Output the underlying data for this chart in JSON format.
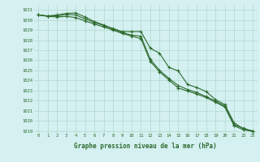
{
  "x": [
    0,
    1,
    2,
    3,
    4,
    5,
    6,
    7,
    8,
    9,
    10,
    11,
    12,
    13,
    14,
    15,
    16,
    17,
    18,
    19,
    20,
    21,
    22,
    23
  ],
  "line1": [
    1030.5,
    1030.4,
    1030.5,
    1030.65,
    1030.7,
    1030.3,
    1029.85,
    1029.5,
    1029.15,
    1028.85,
    1028.85,
    1028.85,
    1027.2,
    1026.7,
    1025.3,
    1024.95,
    1023.6,
    1023.3,
    1022.9,
    1022.1,
    1021.6,
    1019.8,
    1019.2,
    1019.0
  ],
  "line2": [
    1030.5,
    1030.4,
    1030.4,
    1030.55,
    1030.5,
    1030.1,
    1029.75,
    1029.45,
    1029.1,
    1028.75,
    1028.5,
    1028.4,
    1026.1,
    1025.0,
    1024.2,
    1023.5,
    1023.1,
    1022.8,
    1022.4,
    1021.95,
    1021.45,
    1019.6,
    1019.25,
    1018.95
  ],
  "line3": [
    1030.5,
    1030.35,
    1030.3,
    1030.35,
    1030.25,
    1029.9,
    1029.6,
    1029.3,
    1029.0,
    1028.65,
    1028.4,
    1028.15,
    1025.9,
    1024.85,
    1024.05,
    1023.25,
    1022.95,
    1022.65,
    1022.3,
    1021.85,
    1021.35,
    1019.5,
    1019.1,
    1018.95
  ],
  "ylim": [
    1018.8,
    1031.5
  ],
  "yticks": [
    1019,
    1020,
    1021,
    1022,
    1023,
    1024,
    1025,
    1026,
    1027,
    1028,
    1029,
    1030,
    1031
  ],
  "xticks": [
    0,
    1,
    2,
    3,
    4,
    5,
    6,
    7,
    8,
    9,
    10,
    11,
    12,
    13,
    14,
    15,
    16,
    17,
    18,
    19,
    20,
    21,
    22,
    23
  ],
  "xlabel": "Graphe pression niveau de la mer (hPa)",
  "line_color": "#2d6a2d",
  "bg_color": "#d4f0f0",
  "grid_color": "#b0d8d0",
  "marker": "+"
}
